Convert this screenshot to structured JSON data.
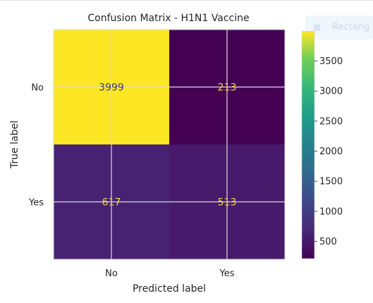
{
  "overlay": {
    "ghost_label": "Rectang"
  },
  "chart_data": {
    "type": "heatmap",
    "title": "Confusion Matrix - H1N1 Vaccine",
    "xlabel": "Predicted label",
    "ylabel": "True label",
    "x_categories": [
      "No",
      "Yes"
    ],
    "y_categories": [
      "No",
      "Yes"
    ],
    "values": [
      [
        3999,
        213
      ],
      [
        617,
        513
      ]
    ],
    "colormap": "viridis",
    "colorbar": {
      "range": [
        213,
        3999
      ],
      "ticks": [
        500,
        1000,
        1500,
        2000,
        2500,
        3000,
        3500
      ]
    },
    "grid": true,
    "colors": {
      "text_on_dark": "#f2d64b",
      "text_on_light": "#3b3b6e",
      "grid": "#d9d9d9",
      "axis_text": "#262626"
    }
  }
}
